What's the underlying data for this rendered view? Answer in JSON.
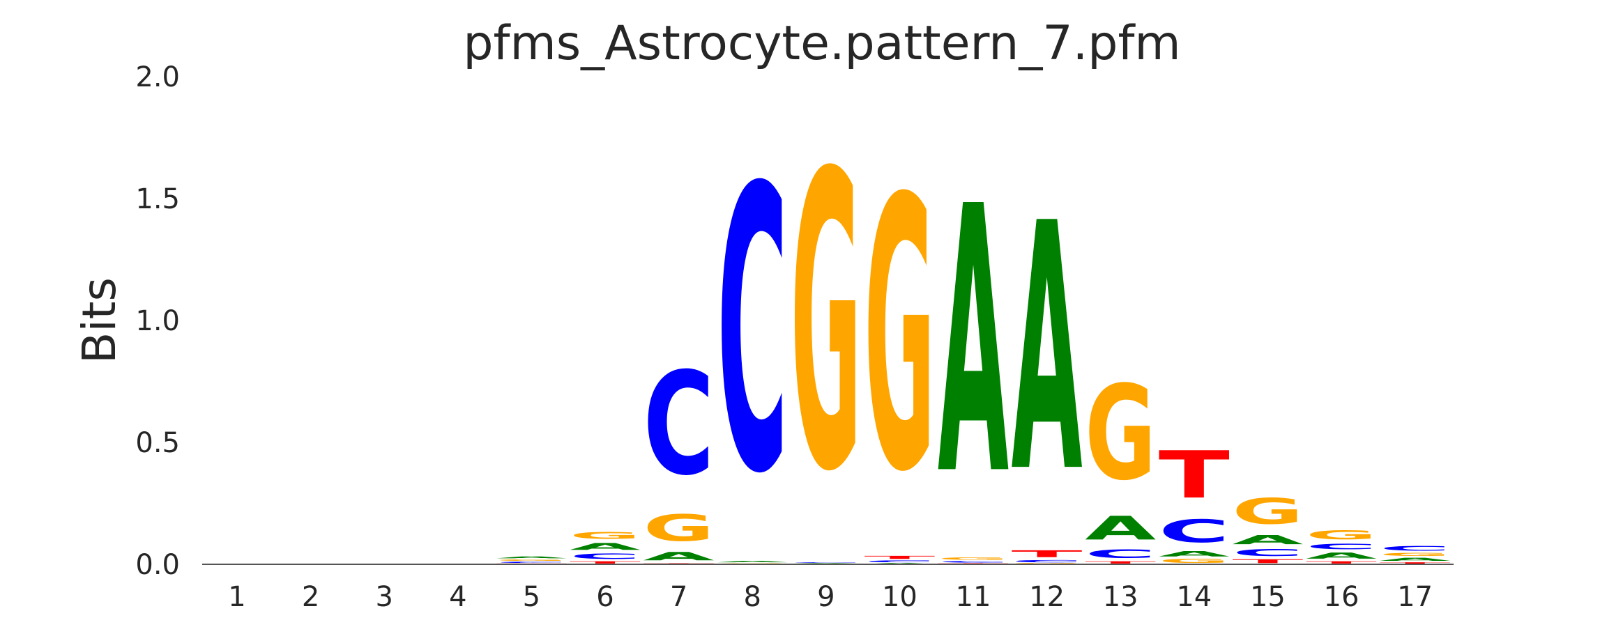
{
  "chart_data": {
    "type": "sequence-logo",
    "title": "pfms_Astrocyte.pattern_7.pfm",
    "ylabel": "Bits",
    "xlabel": "",
    "ylim": [
      0,
      2.0
    ],
    "yticks": [
      "0.0",
      "0.5",
      "1.0",
      "1.5",
      "2.0"
    ],
    "ytick_values": [
      0,
      0.5,
      1.0,
      1.5,
      2.0
    ],
    "positions": [
      "1",
      "2",
      "3",
      "4",
      "5",
      "6",
      "7",
      "8",
      "9",
      "10",
      "11",
      "12",
      "13",
      "14",
      "15",
      "16",
      "17"
    ],
    "colors": {
      "A": "#008000",
      "C": "#0000ff",
      "G": "#ffa500",
      "T": "#ff0000"
    },
    "stacks": [
      [],
      [],
      [],
      [],
      [
        {
          "base": "T",
          "bits": 0.004
        },
        {
          "base": "C",
          "bits": 0.008
        },
        {
          "base": "G",
          "bits": 0.01
        },
        {
          "base": "A",
          "bits": 0.012
        }
      ],
      [
        {
          "base": "T",
          "bits": 0.015
        },
        {
          "base": "C",
          "bits": 0.035
        },
        {
          "base": "A",
          "bits": 0.045
        },
        {
          "base": "G",
          "bits": 0.045
        }
      ],
      [
        {
          "base": "T",
          "bits": 0.005
        },
        {
          "base": "A",
          "bits": 0.055
        },
        {
          "base": "G",
          "bits": 0.175
        },
        {
          "base": "C",
          "bits": 0.675
        }
      ],
      [
        {
          "base": "T",
          "bits": 0.002
        },
        {
          "base": "G",
          "bits": 0.004
        },
        {
          "base": "A",
          "bits": 0.01
        },
        {
          "base": "C",
          "bits": 1.86
        }
      ],
      [
        {
          "base": "T",
          "bits": 0.002
        },
        {
          "base": "A",
          "bits": 0.003
        },
        {
          "base": "C",
          "bits": 0.004
        },
        {
          "base": "G",
          "bits": 1.94
        }
      ],
      [
        {
          "base": "A",
          "bits": 0.006
        },
        {
          "base": "C",
          "bits": 0.012
        },
        {
          "base": "T",
          "bits": 0.02
        },
        {
          "base": "G",
          "bits": 1.78
        }
      ],
      [
        {
          "base": "T",
          "bits": 0.005
        },
        {
          "base": "C",
          "bits": 0.01
        },
        {
          "base": "G",
          "bits": 0.015
        },
        {
          "base": "A",
          "bits": 1.75
        }
      ],
      [
        {
          "base": "G",
          "bits": 0.005
        },
        {
          "base": "C",
          "bits": 0.015
        },
        {
          "base": "T",
          "bits": 0.045
        },
        {
          "base": "A",
          "bits": 1.625
        }
      ],
      [
        {
          "base": "T",
          "bits": 0.015
        },
        {
          "base": "C",
          "bits": 0.055
        },
        {
          "base": "A",
          "bits": 0.155
        },
        {
          "base": "G",
          "bits": 0.62
        }
      ],
      [
        {
          "base": "G",
          "bits": 0.025
        },
        {
          "base": "A",
          "bits": 0.035
        },
        {
          "base": "C",
          "bits": 0.15
        },
        {
          "base": "T",
          "bits": 0.31
        }
      ],
      [
        {
          "base": "T",
          "bits": 0.025
        },
        {
          "base": "C",
          "bits": 0.045
        },
        {
          "base": "A",
          "bits": 0.06
        },
        {
          "base": "G",
          "bits": 0.17
        }
      ],
      [
        {
          "base": "T",
          "bits": 0.015
        },
        {
          "base": "A",
          "bits": 0.04
        },
        {
          "base": "C",
          "bits": 0.035
        },
        {
          "base": "G",
          "bits": 0.06
        }
      ],
      [
        {
          "base": "T",
          "bits": 0.01
        },
        {
          "base": "A",
          "bits": 0.02
        },
        {
          "base": "G",
          "bits": 0.02
        },
        {
          "base": "C",
          "bits": 0.03
        }
      ]
    ]
  }
}
